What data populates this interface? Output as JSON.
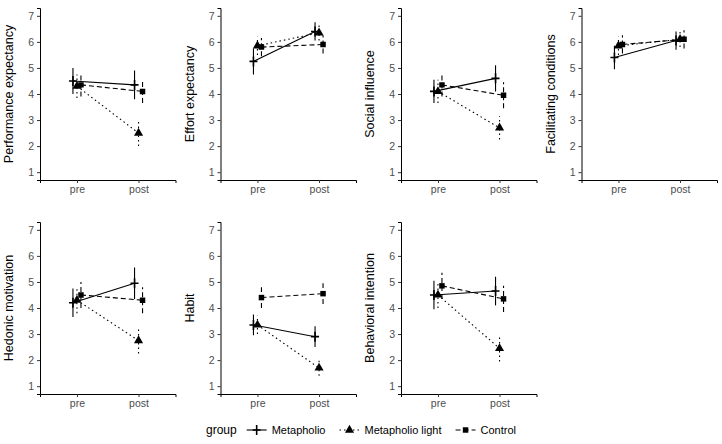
{
  "legend_title": "group",
  "chart_data": [
    {
      "type": "line",
      "y_label": "Performance expectancy",
      "categories": [
        "pre",
        "post"
      ],
      "ylim": [
        0.7,
        7.3
      ],
      "yticks": [
        1,
        2,
        3,
        4,
        5,
        6,
        7
      ],
      "grid": false,
      "series": [
        {
          "name": "Metapholio",
          "color": "#000000",
          "marker": "plus",
          "line_style": "solid",
          "values": [
            4.5,
            4.35
          ],
          "errors": [
            0.5,
            0.55
          ]
        },
        {
          "name": "Metapholio light",
          "color": "#000000",
          "marker": "triangle",
          "line_style": "dotted",
          "values": [
            4.3,
            2.5
          ],
          "errors": [
            0.45,
            0.5
          ]
        },
        {
          "name": "Control",
          "color": "#000000",
          "marker": "square",
          "line_style": "dashed",
          "values": [
            4.35,
            4.1
          ],
          "errors": [
            0.45,
            0.45
          ]
        }
      ]
    },
    {
      "type": "line",
      "y_label": "Effort expectancy",
      "categories": [
        "pre",
        "post"
      ],
      "ylim": [
        0.7,
        7.3
      ],
      "yticks": [
        1,
        2,
        3,
        4,
        5,
        6,
        7
      ],
      "grid": false,
      "series": [
        {
          "name": "Metapholio",
          "color": "#000000",
          "marker": "plus",
          "line_style": "solid",
          "values": [
            5.25,
            6.4
          ],
          "errors": [
            0.5,
            0.35
          ]
        },
        {
          "name": "Metapholio light",
          "color": "#000000",
          "marker": "triangle",
          "line_style": "dotted",
          "values": [
            5.85,
            6.35
          ],
          "errors": [
            0.35,
            0.3
          ]
        },
        {
          "name": "Control",
          "color": "#000000",
          "marker": "square",
          "line_style": "dashed",
          "values": [
            5.8,
            5.9
          ],
          "errors": [
            0.35,
            0.35
          ]
        }
      ]
    },
    {
      "type": "line",
      "y_label": "Social influence",
      "categories": [
        "pre",
        "post"
      ],
      "ylim": [
        0.7,
        7.3
      ],
      "yticks": [
        1,
        2,
        3,
        4,
        5,
        6,
        7
      ],
      "grid": false,
      "series": [
        {
          "name": "Metapholio",
          "color": "#000000",
          "marker": "plus",
          "line_style": "solid",
          "values": [
            4.1,
            4.6
          ],
          "errors": [
            0.45,
            0.5
          ]
        },
        {
          "name": "Metapholio light",
          "color": "#000000",
          "marker": "triangle",
          "line_style": "dotted",
          "values": [
            4.1,
            2.7
          ],
          "errors": [
            0.45,
            0.45
          ]
        },
        {
          "name": "Control",
          "color": "#000000",
          "marker": "square",
          "line_style": "dashed",
          "values": [
            4.35,
            3.95
          ],
          "errors": [
            0.45,
            0.5
          ]
        }
      ]
    },
    {
      "type": "line",
      "y_label": "Facilitating conditions",
      "categories": [
        "pre",
        "post"
      ],
      "ylim": [
        0.7,
        7.3
      ],
      "yticks": [
        1,
        2,
        3,
        4,
        5,
        6,
        7
      ],
      "grid": false,
      "series": [
        {
          "name": "Metapholio",
          "color": "#000000",
          "marker": "plus",
          "line_style": "solid",
          "values": [
            5.4,
            6.05
          ],
          "errors": [
            0.45,
            0.35
          ]
        },
        {
          "name": "Metapholio light",
          "color": "#000000",
          "marker": "triangle",
          "line_style": "dotted",
          "values": [
            5.85,
            6.1
          ],
          "errors": [
            0.35,
            0.3
          ]
        },
        {
          "name": "Control",
          "color": "#000000",
          "marker": "square",
          "line_style": "dashed",
          "values": [
            5.9,
            6.1
          ],
          "errors": [
            0.35,
            0.35
          ]
        }
      ]
    },
    {
      "type": "line",
      "y_label": "Hedonic motivation",
      "categories": [
        "pre",
        "post"
      ],
      "ylim": [
        0.7,
        7.3
      ],
      "yticks": [
        1,
        2,
        3,
        4,
        5,
        6,
        7
      ],
      "grid": false,
      "series": [
        {
          "name": "Metapholio",
          "color": "#000000",
          "marker": "plus",
          "line_style": "solid",
          "values": [
            4.2,
            4.95
          ],
          "errors": [
            0.55,
            0.6
          ]
        },
        {
          "name": "Metapholio light",
          "color": "#000000",
          "marker": "triangle",
          "line_style": "dotted",
          "values": [
            4.3,
            2.75
          ],
          "errors": [
            0.5,
            0.5
          ]
        },
        {
          "name": "Control",
          "color": "#000000",
          "marker": "square",
          "line_style": "dashed",
          "values": [
            4.5,
            4.3
          ],
          "errors": [
            0.5,
            0.5
          ]
        }
      ]
    },
    {
      "type": "line",
      "y_label": "Habit",
      "categories": [
        "pre",
        "post"
      ],
      "ylim": [
        0.7,
        7.3
      ],
      "yticks": [
        1,
        2,
        3,
        4,
        5,
        6,
        7
      ],
      "grid": false,
      "series": [
        {
          "name": "Metapholio",
          "color": "#000000",
          "marker": "plus",
          "line_style": "solid",
          "values": [
            3.35,
            2.9
          ],
          "errors": [
            0.4,
            0.4
          ]
        },
        {
          "name": "Metapholio light",
          "color": "#000000",
          "marker": "triangle",
          "line_style": "dotted",
          "values": [
            3.35,
            1.7
          ],
          "errors": [
            0.35,
            0.3
          ]
        },
        {
          "name": "Control",
          "color": "#000000",
          "marker": "square",
          "line_style": "dashed",
          "values": [
            4.4,
            4.55
          ],
          "errors": [
            0.4,
            0.4
          ]
        }
      ]
    },
    {
      "type": "line",
      "y_label": "Behavioral intention",
      "categories": [
        "pre",
        "post"
      ],
      "ylim": [
        0.7,
        7.3
      ],
      "yticks": [
        1,
        2,
        3,
        4,
        5,
        6,
        7
      ],
      "grid": false,
      "series": [
        {
          "name": "Metapholio",
          "color": "#000000",
          "marker": "plus",
          "line_style": "solid",
          "values": [
            4.5,
            4.65
          ],
          "errors": [
            0.55,
            0.55
          ]
        },
        {
          "name": "Metapholio light",
          "color": "#000000",
          "marker": "triangle",
          "line_style": "dotted",
          "values": [
            4.5,
            2.45
          ],
          "errors": [
            0.5,
            0.5
          ]
        },
        {
          "name": "Control",
          "color": "#000000",
          "marker": "square",
          "line_style": "dashed",
          "values": [
            4.85,
            4.35
          ],
          "errors": [
            0.5,
            0.5
          ]
        }
      ]
    }
  ]
}
